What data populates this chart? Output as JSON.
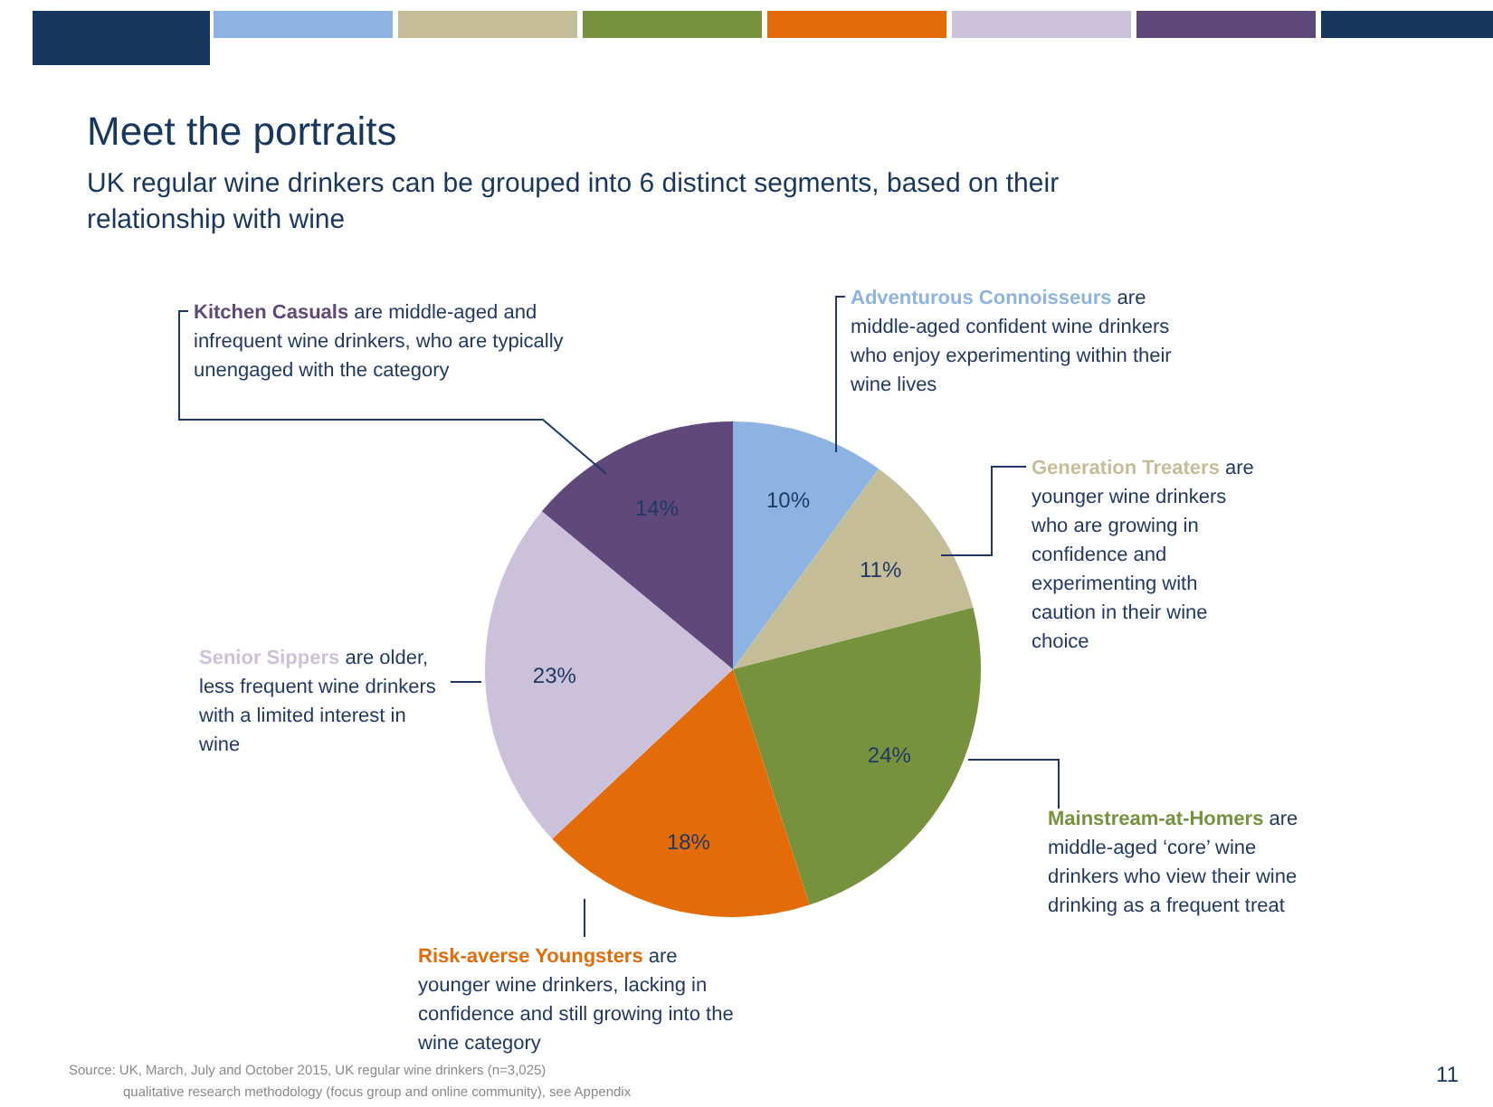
{
  "chart_data": {
    "type": "pie",
    "title": "Meet the portraits",
    "subtitle": "UK regular wine drinkers can be grouped into 6 distinct segments, based on their relationship with wine",
    "categories": [
      "Adventurous Connoisseurs",
      "Generation Treaters",
      "Mainstream-at-Homers",
      "Risk-averse Youngsters",
      "Senior Sippers",
      "Kitchen Casuals"
    ],
    "values": [
      10,
      11,
      24,
      18,
      23,
      14
    ],
    "colors": [
      "#8db3e2",
      "#c4bd97",
      "#76923c",
      "#e36c09",
      "#ccc1da",
      "#5f497a"
    ],
    "value_labels": [
      "10%",
      "11%",
      "24%",
      "18%",
      "23%",
      "14%"
    ],
    "annotations": [
      "are middle-aged confident wine drinkers who enjoy experimenting within their wine lives",
      "are younger wine drinkers who are growing in confidence and experimenting with caution in their wine choice",
      "are middle-aged ‘core’ wine drinkers who view their wine drinking as a frequent treat",
      "are younger wine drinkers, lacking in confidence and still growing into the wine category",
      "are older, less frequent wine drinkers with a limited interest in wine",
      "are middle-aged and infrequent wine drinkers, who are typically unengaged with the category",
      "Source: UK, March, July and October 2015, UK regular wine drinkers (n=3,025)",
      "qualitative research methodology (focus group and online community), see Appendix",
      "11"
    ]
  }
}
